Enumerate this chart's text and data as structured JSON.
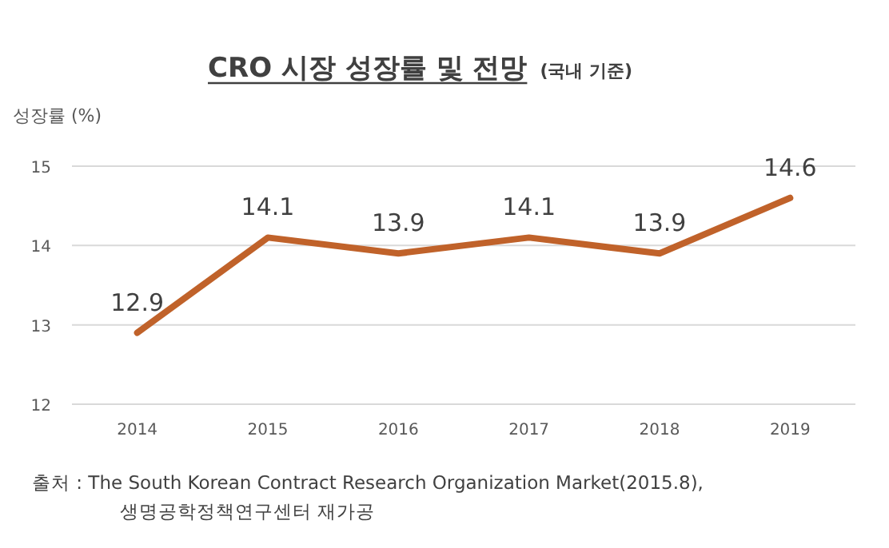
{
  "chart_data": {
    "type": "line",
    "title": "CRO 시장 성장률 및 전망",
    "subtitle": "(국내 기준)",
    "ylabel": "성장률 (%)",
    "categories": [
      "2014",
      "2015",
      "2016",
      "2017",
      "2018",
      "2019"
    ],
    "series": [
      {
        "color": "#c0622a",
        "values": [
          12.9,
          14.1,
          13.9,
          14.1,
          13.9,
          14.6
        ]
      }
    ],
    "ylim": [
      12,
      15
    ],
    "yticks": [
      12,
      13,
      14,
      15
    ],
    "grid": "y",
    "data_labels": true,
    "marker": "none",
    "line_style": "solid",
    "annotations": [
      "출처 : The South Korean Contract Research Organization Market(2015.8),",
      "생명공학정책연구센터 재가공"
    ]
  }
}
